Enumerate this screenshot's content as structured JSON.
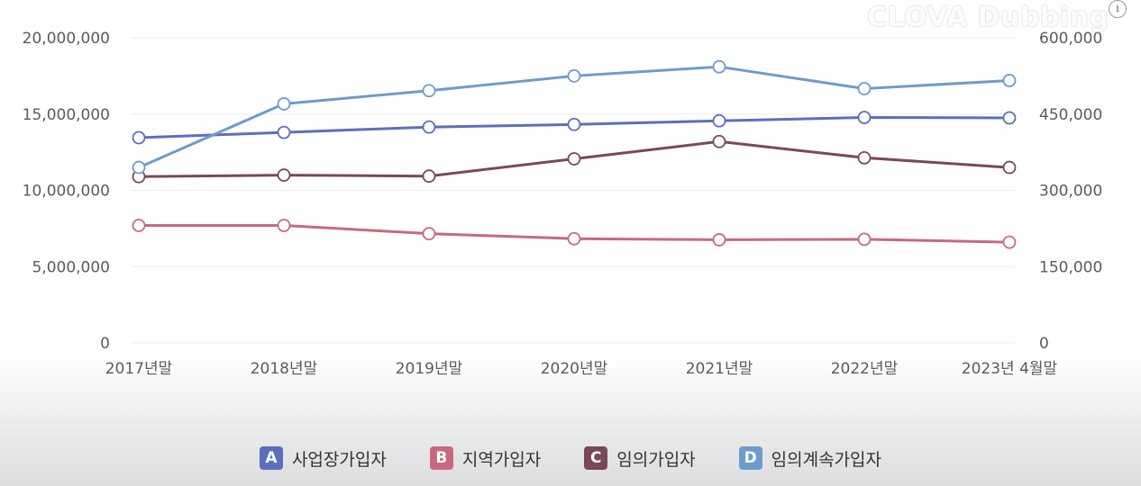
{
  "watermark": "CLOVA Dubbing",
  "info_icon": "info-icon",
  "chart_data": {
    "type": "line",
    "categories": [
      "2017년말",
      "2018년말",
      "2019년말",
      "2020년말",
      "2021년말",
      "2022년말",
      "2023년 4월말"
    ],
    "y_left": {
      "ticks": [
        "0",
        "5,000,000",
        "10,000,000",
        "15,000,000",
        "20,000,000"
      ],
      "range": [
        0,
        20000000
      ]
    },
    "y_right": {
      "ticks": [
        "0",
        "150,000",
        "300,000",
        "450,000",
        "600,000"
      ],
      "range": [
        0,
        600000
      ]
    },
    "grid": true,
    "legend_position": "bottom",
    "series": [
      {
        "key": "A",
        "name": "사업장가입자",
        "axis": "left",
        "color": "#5b6fbe",
        "values": [
          13450000,
          13800000,
          14150000,
          14320000,
          14560000,
          14780000,
          14750000
        ]
      },
      {
        "key": "B",
        "name": "지역가입자",
        "axis": "left",
        "color": "#c9697e",
        "values": [
          7700000,
          7700000,
          7160000,
          6830000,
          6760000,
          6790000,
          6600000
        ]
      },
      {
        "key": "C",
        "name": "임의가입자",
        "axis": "right",
        "color": "#7a4857",
        "values": [
          327000,
          330000,
          328000,
          362000,
          396000,
          364000,
          345000
        ]
      },
      {
        "key": "D",
        "name": "임의계속가입자",
        "axis": "right",
        "color": "#6d9ccc",
        "values": [
          345000,
          470000,
          496000,
          525000,
          543000,
          500000,
          516000
        ]
      }
    ]
  }
}
